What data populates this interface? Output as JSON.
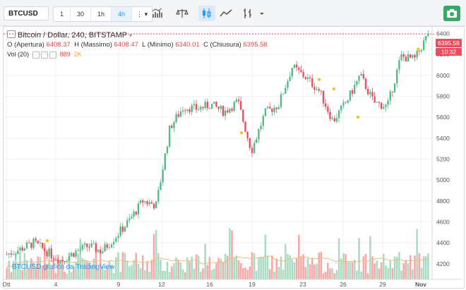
{
  "toolbar": {
    "symbol": "BTCUSD",
    "timeframes": [
      "1",
      "30",
      "1h",
      "4h"
    ],
    "active_timeframe": "4h",
    "more_label": "⋮ ▾"
  },
  "legend": {
    "title": "Bitcoin / Dollar, 240, BITSTAMP",
    "open_label": "O (Apertura)",
    "open": "6408.37",
    "high_label": "H (Massimo)",
    "high": "6408.47",
    "low_label": "L (Minimo)",
    "low": "6340.01",
    "close_label": "C (Chiusura)",
    "close": "6395.58",
    "volume_label": "Vol (20)",
    "volume_value": "889",
    "volume_ma": "2K"
  },
  "watermark": "BTCUSD grafico da TradingView",
  "price_badge": "6395.58",
  "time_badge": "10:32",
  "colors": {
    "up": "#53b987",
    "down": "#eb4d5c",
    "vol_up": "#a9dcc3",
    "vol_down": "#f7a9a7",
    "vol_ma": "#f5b87a",
    "accent": "#2196f3",
    "camera": "#39a96b"
  },
  "chart_data": {
    "type": "candlestick",
    "x_axis_labels": [
      "Ott",
      "4",
      "9",
      "12",
      "16",
      "19",
      "23",
      "26",
      "29",
      "Nov"
    ],
    "y_ticks": [
      4200,
      4400,
      4600,
      4800,
      5000,
      5200,
      5400,
      5600,
      5800,
      6000,
      6200,
      6400
    ],
    "ylim": [
      4050,
      6450
    ],
    "last_close": 6395.58,
    "close_path": [
      {
        "day": 0,
        "close": 4290
      },
      {
        "day": 1,
        "close": 4340
      },
      {
        "day": 2,
        "close": 4400
      },
      {
        "day": 3,
        "close": 4310
      },
      {
        "day": 4,
        "close": 4230
      },
      {
        "day": 5,
        "close": 4310
      },
      {
        "day": 6,
        "close": 4370
      },
      {
        "day": 7,
        "close": 4320
      },
      {
        "day": 8,
        "close": 4460
      },
      {
        "day": 9,
        "close": 4610
      },
      {
        "day": 10,
        "close": 4800
      },
      {
        "day": 11,
        "close": 4760
      },
      {
        "day": 12,
        "close": 5500
      },
      {
        "day": 13,
        "close": 5700
      },
      {
        "day": 14,
        "close": 5680
      },
      {
        "day": 15,
        "close": 5720
      },
      {
        "day": 16,
        "close": 5650
      },
      {
        "day": 17,
        "close": 5750
      },
      {
        "day": 18,
        "close": 5280
      },
      {
        "day": 19,
        "close": 5640
      },
      {
        "day": 20,
        "close": 5720
      },
      {
        "day": 21,
        "close": 6080
      },
      {
        "day": 22,
        "close": 5980
      },
      {
        "day": 23,
        "close": 5850
      },
      {
        "day": 24,
        "close": 5560
      },
      {
        "day": 25,
        "close": 5750
      },
      {
        "day": 26,
        "close": 6000
      },
      {
        "day": 27,
        "close": 5740
      },
      {
        "day": 28,
        "close": 5700
      },
      {
        "day": 29,
        "close": 6180
      },
      {
        "day": 30,
        "close": 6150
      },
      {
        "day": 31,
        "close": 6395.58
      }
    ]
  }
}
